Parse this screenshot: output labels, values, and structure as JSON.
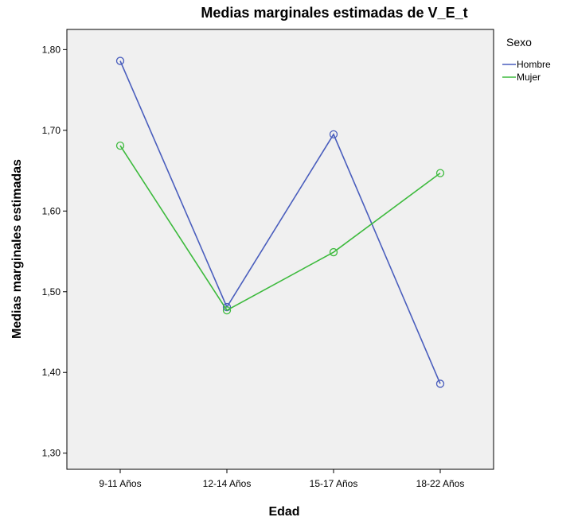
{
  "chart_data": {
    "type": "line",
    "title": "Medias marginales estimadas de V_E_t",
    "xlabel": "Edad",
    "ylabel": "Medias marginales estimadas",
    "categories": [
      "9-11 Años",
      "12-14 Años",
      "15-17 Años",
      "18-22 Años"
    ],
    "ylim": [
      1.28,
      1.825
    ],
    "yticks": [
      "1,30",
      "1,40",
      "1,50",
      "1,60",
      "1,70",
      "1,80"
    ],
    "ytick_values": [
      1.3,
      1.4,
      1.5,
      1.6,
      1.7,
      1.8
    ],
    "grid": false,
    "legend": {
      "title": "Sexo",
      "placement": "right"
    },
    "series": [
      {
        "name": "Hombre",
        "color": "#4a5ebd",
        "values": [
          1.786,
          1.481,
          1.695,
          1.386
        ]
      },
      {
        "name": "Mujer",
        "color": "#3dba3d",
        "values": [
          1.681,
          1.477,
          1.549,
          1.647
        ]
      }
    ],
    "plot_background": "#f0f0f0",
    "marker": "open-circle"
  }
}
